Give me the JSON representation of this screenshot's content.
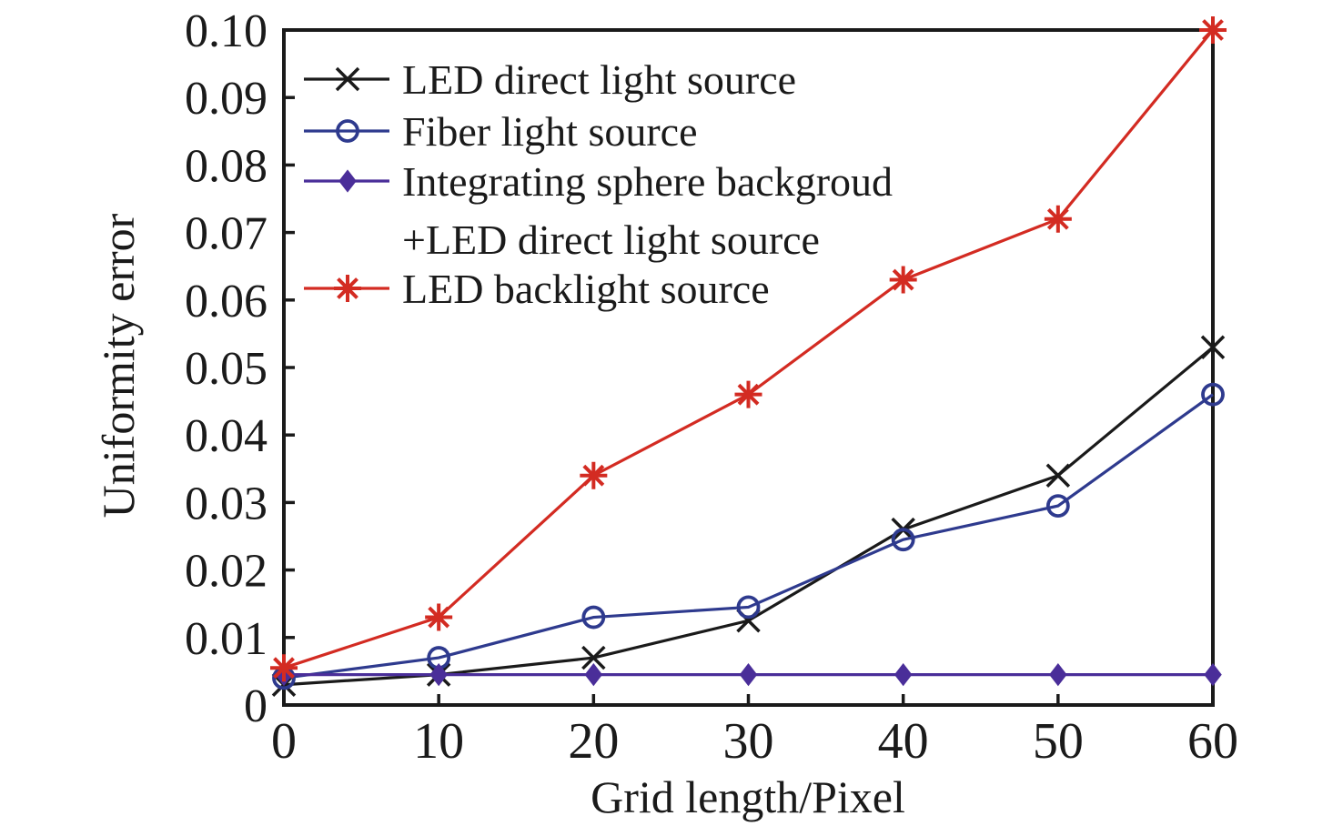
{
  "figure": {
    "background_color": "#ffffff",
    "text_color": "#1a1a1a",
    "axis_color": "#1a1a1a"
  },
  "chart_data": {
    "type": "line",
    "title": "",
    "xlabel": "Grid length/Pixel",
    "ylabel": "Uniformity error",
    "xlim": [
      0,
      60
    ],
    "ylim": [
      0,
      0.1
    ],
    "grid": false,
    "legend_position": "top-left-inside",
    "x_ticks": [
      0,
      10,
      20,
      30,
      40,
      50,
      60
    ],
    "x_tick_labels": [
      "0",
      "10",
      "20",
      "30",
      "40",
      "50",
      "60"
    ],
    "y_ticks": [
      0,
      0.01,
      0.02,
      0.03,
      0.04,
      0.05,
      0.06,
      0.07,
      0.08,
      0.09,
      0.1
    ],
    "y_tick_labels": [
      "0",
      "0.01",
      "0.02",
      "0.03",
      "0.04",
      "0.05",
      "0.06",
      "0.07",
      "0.08",
      "0.09",
      "0.10"
    ],
    "x": [
      0,
      10,
      20,
      30,
      40,
      50,
      60
    ],
    "series": [
      {
        "name": "LED direct light source",
        "color": "#1a1a1a",
        "marker": "x",
        "values": [
          0.003,
          0.0045,
          0.007,
          0.0125,
          0.026,
          0.034,
          0.053
        ]
      },
      {
        "name": "Fiber light source",
        "color": "#2e3a8e",
        "marker": "circle",
        "values": [
          0.004,
          0.007,
          0.013,
          0.0145,
          0.0245,
          0.0295,
          0.046
        ]
      },
      {
        "name": "Integrating sphere backgroud +LED direct light source",
        "color": "#4a2e99",
        "marker": "diamond",
        "values": [
          0.0045,
          0.0045,
          0.0045,
          0.0045,
          0.0045,
          0.0045,
          0.0045
        ]
      },
      {
        "name": "LED backlight source",
        "color": "#d32b22",
        "marker": "asterisk",
        "values": [
          0.0055,
          0.013,
          0.034,
          0.046,
          0.063,
          0.072,
          0.1
        ]
      }
    ],
    "legend": [
      {
        "series_index": 0,
        "lines": [
          "LED direct light source"
        ]
      },
      {
        "series_index": 1,
        "lines": [
          "Fiber light source"
        ]
      },
      {
        "series_index": 2,
        "lines": [
          "Integrating sphere backgroud",
          "+LED direct light source"
        ]
      },
      {
        "series_index": 3,
        "lines": [
          "LED backlight source"
        ]
      }
    ]
  }
}
